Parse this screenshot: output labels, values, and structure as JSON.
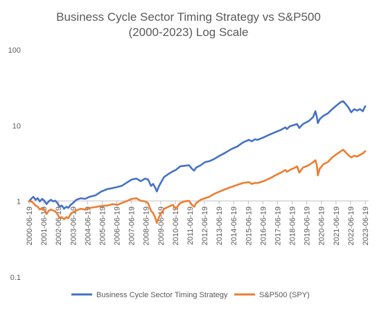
{
  "chart_data": {
    "type": "line",
    "title_line1": "Business Cycle Sector Timing Strategy vs S&P500",
    "title_line2": "(2000-2023) Log Scale",
    "yscale": "log",
    "ylim": [
      0.1,
      100
    ],
    "y_ticks": [
      {
        "value": 0.1,
        "label": "0.1"
      },
      {
        "value": 1,
        "label": "1"
      },
      {
        "value": 10,
        "label": "10"
      },
      {
        "value": 100,
        "label": "100"
      }
    ],
    "x_ticks": [
      "2000-06-19",
      "2001-06-19",
      "2002-06-19",
      "2003-06-19",
      "2004-06-19",
      "2005-06-19",
      "2006-06-19",
      "2007-06-19",
      "2008-06-19",
      "2009-06-19",
      "2010-06-19",
      "2011-06-19",
      "2012-06-19",
      "2013-06-19",
      "2014-06-19",
      "2015-06-19",
      "2016-06-19",
      "2017-06-19",
      "2018-06-19",
      "2019-06-19",
      "2020-06-19",
      "2021-06-19",
      "2022-06-19",
      "2023-06-19"
    ],
    "xlim": [
      2000.46,
      2023.46
    ],
    "grid": false,
    "legend_position": "bottom",
    "series": [
      {
        "name": "Business Cycle Sector Timing Strategy",
        "color": "#4472C4",
        "x": [
          2000.46,
          2000.6,
          2000.75,
          2000.9,
          2001.05,
          2001.2,
          2001.35,
          2001.5,
          2001.65,
          2001.8,
          2001.95,
          2002.1,
          2002.25,
          2002.4,
          2002.55,
          2002.7,
          2002.85,
          2003.0,
          2003.15,
          2003.3,
          2003.46,
          2003.7,
          2004.0,
          2004.3,
          2004.6,
          2005.0,
          2005.4,
          2005.8,
          2006.2,
          2006.5,
          2006.8,
          2007.2,
          2007.5,
          2007.8,
          2008.1,
          2008.4,
          2008.6,
          2008.8,
          2008.95,
          2009.1,
          2009.2,
          2009.35,
          2009.5,
          2009.7,
          2010.0,
          2010.3,
          2010.5,
          2010.8,
          2011.1,
          2011.4,
          2011.6,
          2011.75,
          2011.9,
          2012.2,
          2012.5,
          2012.8,
          2013.1,
          2013.5,
          2013.9,
          2014.3,
          2014.7,
          2015.1,
          2015.5,
          2015.7,
          2015.9,
          2016.1,
          2016.5,
          2016.9,
          2017.3,
          2017.7,
          2018.0,
          2018.1,
          2018.3,
          2018.6,
          2018.8,
          2018.95,
          2019.2,
          2019.6,
          2019.9,
          2020.05,
          2020.15,
          2020.22,
          2020.35,
          2020.6,
          2020.9,
          2021.2,
          2021.5,
          2021.8,
          2021.95,
          2022.1,
          2022.3,
          2022.5,
          2022.7,
          2022.9,
          2023.1,
          2023.3,
          2023.46
        ],
        "values": [
          1.0,
          1.08,
          1.15,
          1.05,
          1.1,
          1.0,
          1.08,
          1.02,
          0.92,
          1.0,
          1.05,
          1.0,
          1.02,
          0.95,
          0.85,
          0.88,
          0.8,
          0.85,
          0.82,
          0.9,
          0.95,
          1.05,
          1.1,
          1.08,
          1.15,
          1.2,
          1.35,
          1.45,
          1.5,
          1.55,
          1.6,
          1.8,
          1.95,
          2.0,
          1.85,
          2.0,
          1.95,
          1.6,
          1.7,
          1.5,
          1.35,
          1.6,
          1.8,
          2.1,
          2.3,
          2.5,
          2.6,
          2.9,
          2.95,
          3.0,
          2.7,
          2.55,
          2.8,
          3.0,
          3.3,
          3.4,
          3.6,
          4.0,
          4.4,
          4.9,
          5.3,
          6.0,
          6.5,
          6.2,
          6.6,
          6.5,
          7.0,
          7.6,
          8.2,
          8.8,
          9.5,
          9.0,
          9.8,
          10.2,
          10.5,
          9.3,
          10.5,
          11.5,
          13.0,
          15.5,
          13.0,
          10.8,
          12.2,
          13.5,
          14.5,
          16.5,
          18.5,
          20.5,
          21.0,
          19.5,
          17.5,
          15.0,
          16.5,
          15.8,
          16.5,
          15.5,
          18.0
        ]
      },
      {
        "name": "S&P500 (SPY)",
        "color": "#ED7D31",
        "x": [
          2000.46,
          2000.6,
          2000.75,
          2000.9,
          2001.05,
          2001.2,
          2001.35,
          2001.5,
          2001.65,
          2001.8,
          2001.95,
          2002.1,
          2002.25,
          2002.4,
          2002.55,
          2002.7,
          2002.85,
          2003.0,
          2003.15,
          2003.3,
          2003.46,
          2003.7,
          2004.0,
          2004.3,
          2004.6,
          2005.0,
          2005.4,
          2005.8,
          2006.2,
          2006.5,
          2006.8,
          2007.2,
          2007.5,
          2007.8,
          2008.1,
          2008.4,
          2008.6,
          2008.8,
          2008.95,
          2009.1,
          2009.2,
          2009.35,
          2009.5,
          2009.7,
          2010.0,
          2010.3,
          2010.5,
          2010.8,
          2011.1,
          2011.4,
          2011.6,
          2011.75,
          2011.9,
          2012.2,
          2012.5,
          2012.8,
          2013.1,
          2013.5,
          2013.9,
          2014.3,
          2014.7,
          2015.1,
          2015.5,
          2015.7,
          2015.9,
          2016.1,
          2016.5,
          2016.9,
          2017.3,
          2017.7,
          2018.0,
          2018.1,
          2018.3,
          2018.6,
          2018.8,
          2018.95,
          2019.2,
          2019.6,
          2019.9,
          2020.05,
          2020.15,
          2020.22,
          2020.35,
          2020.6,
          2020.9,
          2021.2,
          2021.5,
          2021.8,
          2021.95,
          2022.1,
          2022.3,
          2022.5,
          2022.7,
          2022.9,
          2023.1,
          2023.3,
          2023.46
        ],
        "values": [
          1.0,
          1.0,
          0.95,
          0.88,
          0.85,
          0.78,
          0.82,
          0.78,
          0.68,
          0.75,
          0.78,
          0.76,
          0.74,
          0.68,
          0.6,
          0.62,
          0.58,
          0.62,
          0.6,
          0.68,
          0.72,
          0.76,
          0.8,
          0.78,
          0.82,
          0.84,
          0.87,
          0.88,
          0.92,
          0.9,
          0.95,
          1.02,
          1.08,
          1.1,
          1.02,
          1.0,
          0.95,
          0.75,
          0.7,
          0.6,
          0.52,
          0.62,
          0.7,
          0.8,
          0.85,
          0.9,
          0.8,
          0.95,
          1.0,
          1.02,
          0.9,
          0.85,
          0.95,
          1.05,
          1.1,
          1.15,
          1.25,
          1.35,
          1.45,
          1.55,
          1.65,
          1.75,
          1.8,
          1.7,
          1.75,
          1.75,
          1.85,
          2.0,
          2.2,
          2.4,
          2.6,
          2.45,
          2.6,
          2.75,
          2.9,
          2.4,
          2.8,
          3.0,
          3.3,
          3.5,
          3.0,
          2.2,
          2.7,
          3.1,
          3.3,
          3.8,
          4.2,
          4.6,
          4.8,
          4.5,
          4.1,
          3.8,
          4.0,
          3.9,
          4.1,
          4.3,
          4.6
        ]
      }
    ]
  }
}
